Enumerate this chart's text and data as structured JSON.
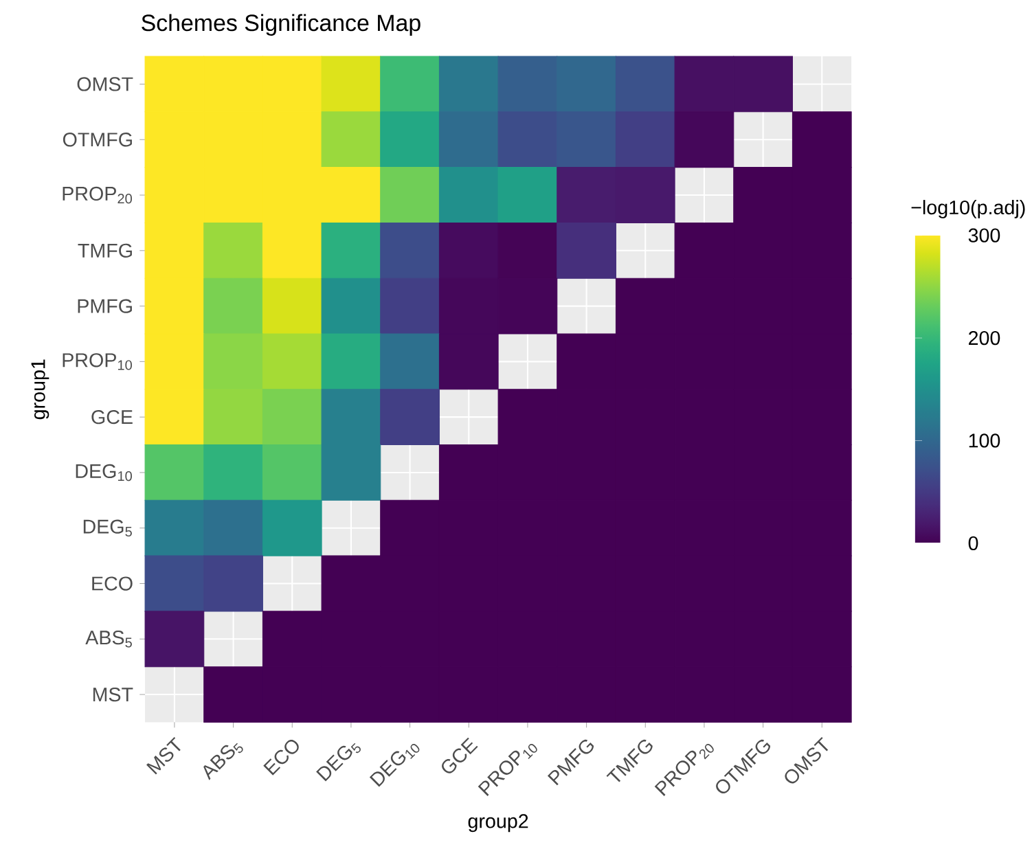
{
  "chart_data": {
    "type": "heatmap",
    "title": "Schemes Significance Map",
    "xlabel": "group2",
    "ylabel": "group1",
    "clabel": "−log10(p.adj)",
    "categories": [
      "MST",
      "ABS$_{5}$",
      "ECO",
      "DEG$_{5}$",
      "DEG$_{10}$",
      "GCE",
      "PROP$_{10}$",
      "PMFG",
      "TMFG",
      "PROP$_{20}$",
      "OTMFG",
      "OMST"
    ],
    "y_categories": [
      "OMST",
      "OTMFG",
      "PROP$_{20}$",
      "TMFG",
      "PMFG",
      "PROP$_{10}$",
      "GCE",
      "DEG$_{10}$",
      "DEG$_{5}$",
      "ECO",
      "ABS$_{5}$",
      "MST"
    ],
    "cells": [
      [
        300,
        300,
        300,
        285,
        205,
        120,
        90,
        100,
        75,
        12,
        12,
        null
      ],
      [
        300,
        300,
        300,
        255,
        180,
        105,
        70,
        80,
        55,
        5,
        null,
        0
      ],
      [
        300,
        300,
        300,
        300,
        235,
        150,
        170,
        22,
        20,
        null,
        0,
        0
      ],
      [
        300,
        255,
        300,
        190,
        70,
        8,
        2,
        40,
        null,
        0,
        0,
        0
      ],
      [
        300,
        240,
        282,
        150,
        55,
        5,
        3,
        null,
        0,
        0,
        0,
        0
      ],
      [
        300,
        248,
        260,
        185,
        110,
        5,
        null,
        0,
        0,
        0,
        0,
        0
      ],
      [
        300,
        252,
        240,
        130,
        55,
        null,
        0,
        0,
        0,
        0,
        0,
        0
      ],
      [
        220,
        195,
        220,
        130,
        null,
        0,
        0,
        0,
        0,
        0,
        0,
        0
      ],
      [
        125,
        110,
        160,
        null,
        0,
        0,
        0,
        0,
        0,
        0,
        0,
        0
      ],
      [
        70,
        60,
        null,
        0,
        0,
        0,
        0,
        0,
        0,
        0,
        0,
        0
      ],
      [
        15,
        null,
        0,
        0,
        0,
        0,
        0,
        0,
        0,
        0,
        0,
        0
      ],
      [
        null,
        0,
        0,
        0,
        0,
        0,
        0,
        0,
        0,
        0,
        0,
        0
      ]
    ],
    "clim": [
      0,
      300
    ],
    "cticks": [
      0,
      100,
      200,
      300
    ],
    "grid": true
  }
}
